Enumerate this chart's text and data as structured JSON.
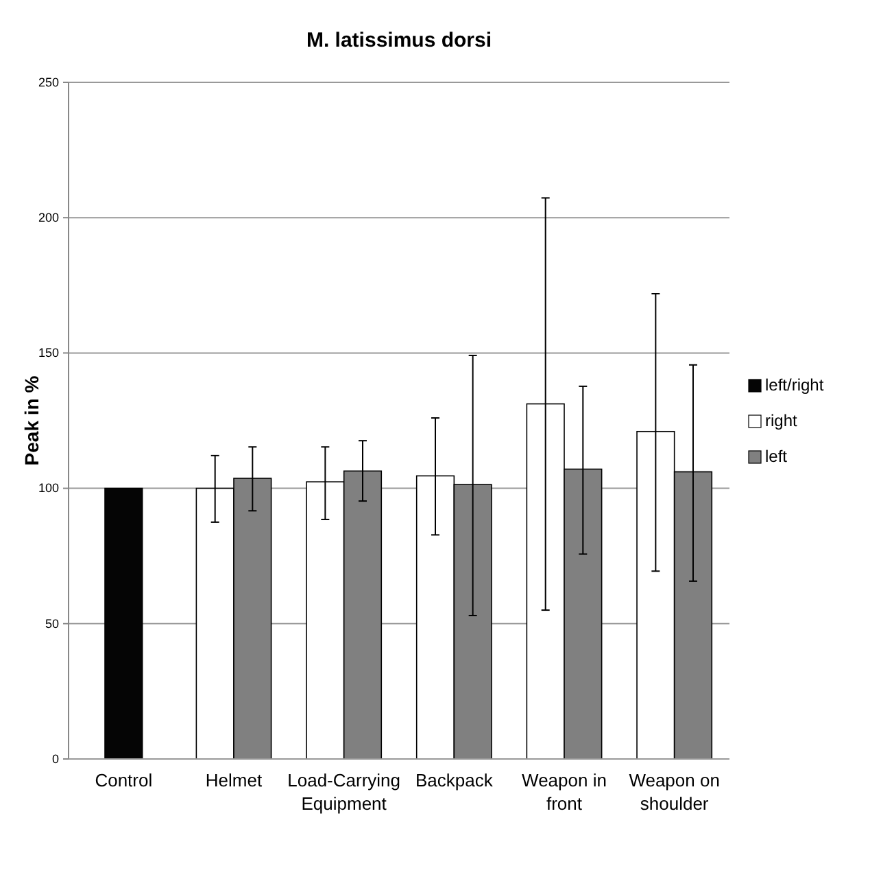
{
  "chart_data": {
    "type": "bar",
    "title": "M. latissimus dorsi",
    "ylabel": "Peak in %",
    "categories": [
      "Control",
      "Helmet",
      "Load-Carrying Equipment",
      "Backpack",
      "Weapon in front",
      "Weapon on shoulder"
    ],
    "series": [
      {
        "name": "left/right",
        "color": "#050505",
        "values": [
          100,
          null,
          null,
          null,
          null,
          null
        ]
      },
      {
        "name": "right",
        "color": "#ffffff",
        "values": [
          null,
          100,
          102.4,
          104.6,
          131.2,
          121
        ],
        "errors": [
          null,
          [
            87.5,
            112.1
          ],
          [
            88.5,
            115.3
          ],
          [
            82.8,
            126
          ],
          [
            55,
            207.3
          ],
          [
            69.4,
            171.9
          ]
        ]
      },
      {
        "name": "left",
        "color": "#808080",
        "values": [
          null,
          103.7,
          106.4,
          101.4,
          107.1,
          106.1
        ],
        "errors": [
          null,
          [
            91.7,
            115.3
          ],
          [
            95.3,
            117.6
          ],
          [
            53,
            149.1
          ],
          [
            75.7,
            137.7
          ],
          [
            65.7,
            145.6
          ]
        ]
      }
    ],
    "ylim": [
      0,
      250
    ],
    "yticks": [
      0,
      50,
      100,
      150,
      200,
      250
    ],
    "grid": "y",
    "legend": "right"
  }
}
